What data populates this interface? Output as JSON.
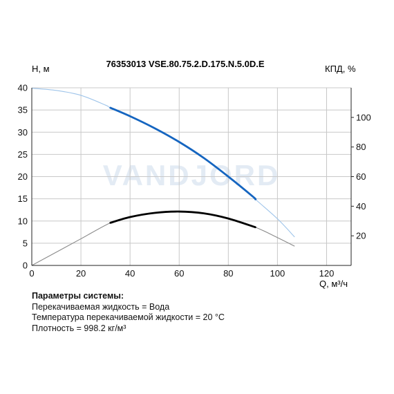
{
  "chart_data": {
    "type": "line",
    "title": "76353013 VSE.80.75.2.D.175.N.5.0D.E",
    "ylabel": "Н, м",
    "y2label": "КПД, %",
    "xlabel": "Q, м³/ч",
    "xlim": [
      0,
      130
    ],
    "ylim": [
      0,
      40
    ],
    "y2lim": [
      0,
      120
    ],
    "x_ticks": [
      0,
      20,
      40,
      60,
      80,
      100,
      120
    ],
    "y_ticks": [
      5,
      10,
      15,
      20,
      25,
      30,
      35,
      40
    ],
    "y2_ticks": [
      20,
      40,
      60,
      80,
      100
    ],
    "grid": true,
    "watermark": "VANDJORD",
    "series": [
      {
        "axis": "left",
        "color": "#1565c0",
        "faint_color": "#9ec4ea",
        "operating_range": [
          32,
          91
        ],
        "x": [
          0,
          10,
          20,
          30,
          32,
          40,
          50,
          60,
          70,
          80,
          90,
          91,
          100,
          107
        ],
        "y": [
          39.9,
          39.4,
          38.3,
          36.1,
          35.5,
          33.6,
          30.9,
          27.8,
          24.2,
          20.0,
          15.5,
          14.9,
          10.5,
          6.4
        ]
      },
      {
        "axis": "right",
        "color": "#000000",
        "faint_color": "#8a8a8a",
        "operating_range": [
          32,
          91
        ],
        "x": [
          0,
          10,
          20,
          32,
          40,
          50,
          60,
          70,
          80,
          91,
          100,
          107
        ],
        "y": [
          0,
          9,
          18,
          28.8,
          32.7,
          35.5,
          36.4,
          35.2,
          31.7,
          25.8,
          18.8,
          13.0
        ]
      }
    ]
  },
  "params": {
    "heading": "Параметры системы:",
    "lines": [
      "Перекачиваемая жидкость = Вода",
      "Температура перекачиваемой жидкости = 20 °C",
      "Плотность = 998.2 кг/м³"
    ]
  }
}
